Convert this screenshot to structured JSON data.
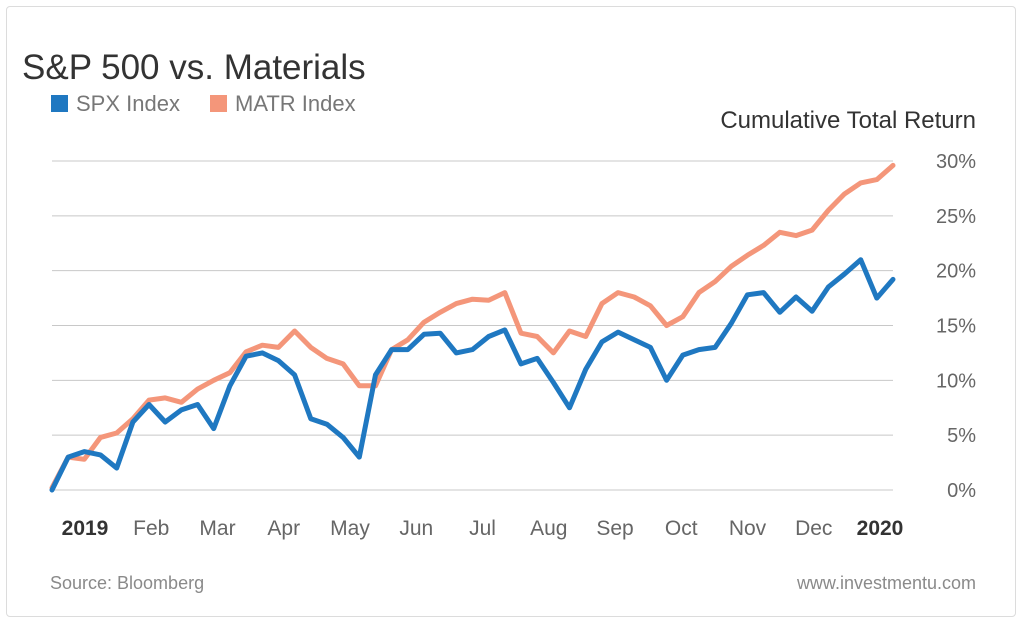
{
  "chart_data": {
    "type": "line",
    "title": "S&P 500 vs. Materials",
    "ylabel": "Cumulative Total Return",
    "xlabel": "",
    "ylim": [
      0,
      30
    ],
    "y_ticks": [
      "0%",
      "5%",
      "10%",
      "15%",
      "20%",
      "25%",
      "30%"
    ],
    "y_tick_values": [
      0,
      5,
      10,
      15,
      20,
      25,
      30
    ],
    "x_ticks": [
      {
        "label": "2019",
        "date": "2019-01-01",
        "bold": true
      },
      {
        "label": "Feb",
        "date": "2019-02-01"
      },
      {
        "label": "Mar",
        "date": "2019-03-01"
      },
      {
        "label": "Apr",
        "date": "2019-04-01"
      },
      {
        "label": "May",
        "date": "2019-05-01"
      },
      {
        "label": "Jun",
        "date": "2019-06-01"
      },
      {
        "label": "Jul",
        "date": "2019-07-01"
      },
      {
        "label": "Aug",
        "date": "2019-08-01"
      },
      {
        "label": "Sep",
        "date": "2019-09-01"
      },
      {
        "label": "Oct",
        "date": "2019-10-01"
      },
      {
        "label": "Nov",
        "date": "2019-11-01"
      },
      {
        "label": "Dec",
        "date": "2019-12-01"
      },
      {
        "label": "2020",
        "date": "2020-01-01",
        "bold": true
      }
    ],
    "grid": true,
    "y_axis_side": "right",
    "legend_position": "top-left",
    "x": [
      "2019-01-01",
      "2019-01-08",
      "2019-01-15",
      "2019-01-22",
      "2019-01-29",
      "2019-02-05",
      "2019-02-12",
      "2019-02-19",
      "2019-02-26",
      "2019-03-05",
      "2019-03-12",
      "2019-03-19",
      "2019-03-26",
      "2019-04-02",
      "2019-04-09",
      "2019-04-16",
      "2019-04-23",
      "2019-04-30",
      "2019-05-07",
      "2019-05-14",
      "2019-05-21",
      "2019-05-28",
      "2019-06-04",
      "2019-06-11",
      "2019-06-18",
      "2019-06-25",
      "2019-07-02",
      "2019-07-09",
      "2019-07-16",
      "2019-07-23",
      "2019-07-30",
      "2019-08-06",
      "2019-08-13",
      "2019-08-20",
      "2019-08-27",
      "2019-09-03",
      "2019-09-10",
      "2019-09-17",
      "2019-09-24",
      "2019-10-01",
      "2019-10-08",
      "2019-10-15",
      "2019-10-22",
      "2019-10-29",
      "2019-11-05",
      "2019-11-12",
      "2019-11-19",
      "2019-11-26",
      "2019-12-03",
      "2019-12-10",
      "2019-12-17",
      "2019-12-24",
      "2019-12-31"
    ],
    "series": [
      {
        "name": "SPX Index",
        "color": "#1f78c1",
        "values": [
          0,
          3.0,
          3.5,
          3.2,
          2,
          6.2,
          7.8,
          6.2,
          7.3,
          7.8,
          5.6,
          9.5,
          12.2,
          12.5,
          11.8,
          10.5,
          6.5,
          6,
          4.8,
          3,
          10.5,
          12.8,
          12.8,
          14.2,
          14.3,
          12.5,
          12.8,
          14,
          14.6,
          11.5,
          12,
          9.8,
          7.5,
          11,
          13.5,
          14.4,
          13.7,
          13,
          10,
          12.3,
          12.8,
          13,
          15.2,
          17.8,
          18,
          16.2,
          17.6,
          16.3,
          18.5,
          19.7,
          21,
          17.5,
          19.2
        ]
      },
      {
        "name": "MATR Index",
        "color": "#f4967a",
        "values": [
          0.2,
          3,
          2.8,
          4.8,
          5.2,
          6.5,
          8.2,
          8.4,
          8,
          9.2,
          10,
          10.7,
          12.6,
          13.2,
          13,
          14.5,
          13,
          12,
          11.5,
          9.5,
          9.5,
          12.8,
          13.7,
          15.3,
          16.2,
          17,
          17.4,
          17.3,
          18,
          14.3,
          14,
          12.5,
          14.5,
          14,
          17,
          18,
          17.6,
          16.8,
          15,
          15.8,
          18,
          19,
          20.4,
          21.4,
          22.3,
          23.5,
          23.2,
          23.7,
          25.5,
          27,
          28,
          28.3,
          29.6
        ]
      }
    ]
  },
  "footer": {
    "source": "Source: Bloomberg",
    "site": "www.investmentu.com"
  },
  "colors": {
    "grid": "#c8c8c8",
    "title": "#333333",
    "muted": "#8a8a8a"
  }
}
